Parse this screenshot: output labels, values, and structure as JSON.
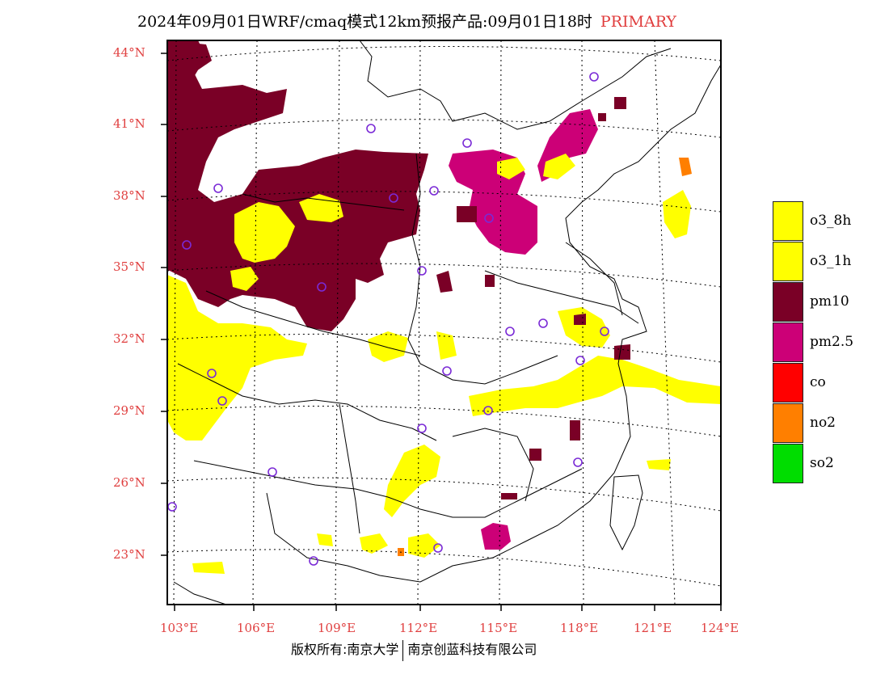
{
  "title": {
    "main": "2024年09月01日WRF/cmaq模式12km预报产品:09月01日18时",
    "tag": "PRIMARY"
  },
  "axes": {
    "lat_labels": [
      "44°N",
      "41°N",
      "38°N",
      "35°N",
      "32°N",
      "29°N",
      "26°N",
      "23°N"
    ],
    "lon_labels": [
      "103°E",
      "106°E",
      "109°E",
      "112°E",
      "115°E",
      "118°E",
      "121°E",
      "124°E"
    ]
  },
  "legend": [
    {
      "label": "o3_8h",
      "color": "#ffff00"
    },
    {
      "label": "o3_1h",
      "color": "#ffff00"
    },
    {
      "label": "pm10",
      "color": "#7a0026"
    },
    {
      "label": "pm2.5",
      "color": "#cc0077"
    },
    {
      "label": "co",
      "color": "#ff0000"
    },
    {
      "label": "no2",
      "color": "#ff7f00"
    },
    {
      "label": "so2",
      "color": "#00dd00"
    }
  ],
  "credit": {
    "left": "版权所有:南京大学",
    "right": "南京创蓝科技有限公司"
  }
}
